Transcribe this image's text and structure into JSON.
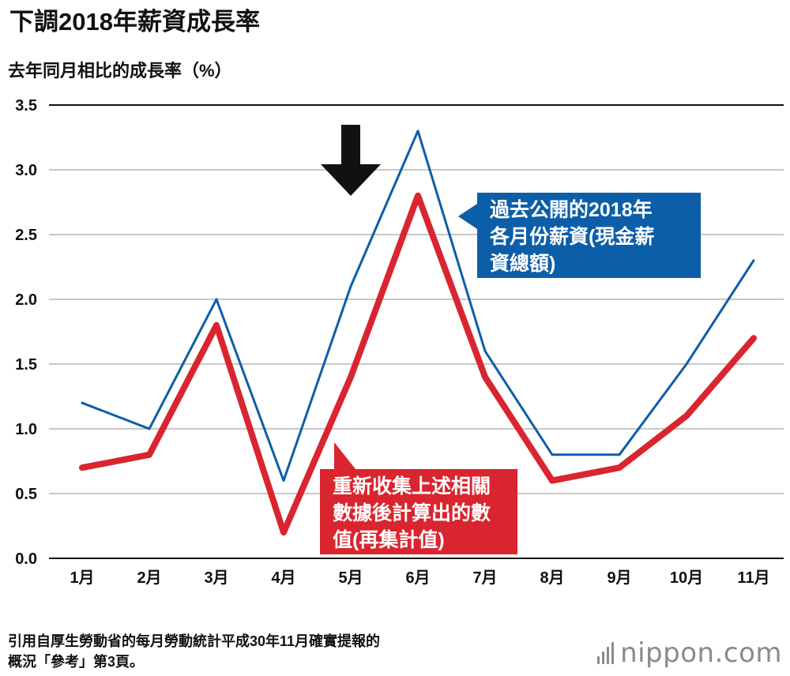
{
  "chart_data": {
    "type": "line",
    "title": "下調2018年薪資成長率",
    "ylabel": "去年同月相比的成長率（%）",
    "xlabel": "",
    "categories": [
      "1月",
      "2月",
      "3月",
      "4月",
      "5月",
      "6月",
      "7月",
      "8月",
      "9月",
      "10月",
      "11月"
    ],
    "ylim": [
      0,
      3.5
    ],
    "yticks": [
      "0.0",
      "0.5",
      "1.0",
      "1.5",
      "2.0",
      "2.5",
      "3.0",
      "3.5"
    ],
    "series": [
      {
        "name": "過去公開的2018年各月份薪資(現金薪資總額)",
        "label_lines": [
          "過去公開的2018年",
          "各月份薪資(現金薪",
          "資總額)"
        ],
        "values": [
          1.2,
          1.0,
          2.0,
          0.6,
          2.1,
          3.3,
          1.6,
          0.8,
          0.8,
          1.5,
          2.3
        ],
        "color": "#0d5ea8"
      },
      {
        "name": "重新收集上述相關數據後計算出的數值(再集計值)",
        "label_lines": [
          "重新收集上述相關",
          "數據後計算出的數",
          "值(再集計值)"
        ],
        "values": [
          0.7,
          0.8,
          1.8,
          0.2,
          1.4,
          2.8,
          1.4,
          0.6,
          0.7,
          1.1,
          1.7
        ],
        "color": "#d9252f"
      }
    ],
    "annotation": {
      "type": "down-arrow",
      "category": "5月"
    }
  },
  "source": {
    "lines": [
      "引用自厚生勞動省的每月勞動統計平成30年11月確實提報的",
      "概況「參考」第3頁。"
    ]
  },
  "brand": {
    "name": "nippon.com"
  },
  "colors": {
    "background": "#ffffff",
    "grid": "#b5b5b5",
    "axis": "#111111",
    "text": "#111111",
    "brand": "#8a8a8a"
  }
}
